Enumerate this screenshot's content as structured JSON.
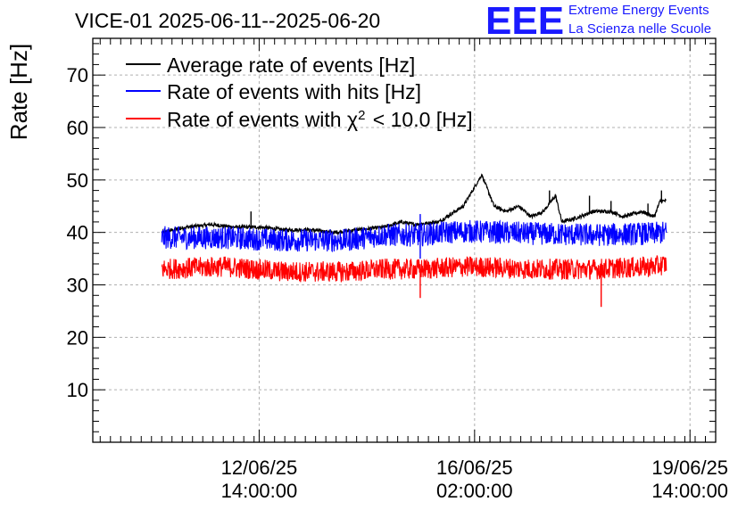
{
  "header": {
    "org_line1": "Extreme Energy Events",
    "org_line2": "La Scienza nelle Scuole",
    "logo_text": "EEE",
    "logo_color": "#1a1aff"
  },
  "chart_data": {
    "type": "line",
    "title": "VICE-01 2025-06-11--2025-06-20",
    "ylabel": "Rate [Hz]",
    "xlabel": "",
    "ylim": [
      0,
      77
    ],
    "xlim_days": [
      -1.12,
      9.0
    ],
    "yticks": [
      10,
      20,
      30,
      40,
      50,
      60,
      70
    ],
    "xticks": [
      {
        "day": 1.583,
        "line1": "12/06/25",
        "line2": "14:00:00"
      },
      {
        "day": 5.083,
        "line1": "16/06/25",
        "line2": "02:00:00"
      },
      {
        "day": 8.583,
        "line1": "19/06/25",
        "line2": "14:00:00"
      }
    ],
    "x_start_day": 0,
    "x_end_day": 8.2,
    "grid": true,
    "legend_position": "top-left",
    "series": [
      {
        "name": "Average rate of events [Hz]",
        "label_main": "Average rate of events [Hz]",
        "color": "#000000",
        "noise": 0.35,
        "anchors": [
          [
            0,
            40
          ],
          [
            0.4,
            41
          ],
          [
            0.8,
            41.5
          ],
          [
            1.2,
            41
          ],
          [
            1.6,
            41
          ],
          [
            2,
            40.5
          ],
          [
            2.4,
            40.5
          ],
          [
            2.8,
            40
          ],
          [
            3.2,
            40.5
          ],
          [
            3.6,
            41
          ],
          [
            3.9,
            42
          ],
          [
            4.1,
            41.5
          ],
          [
            4.5,
            42
          ],
          [
            4.9,
            45
          ],
          [
            5.2,
            51
          ],
          [
            5.4,
            45
          ],
          [
            5.6,
            44
          ],
          [
            5.8,
            45
          ],
          [
            6.0,
            43
          ],
          [
            6.2,
            44
          ],
          [
            6.4,
            47
          ],
          [
            6.5,
            42
          ],
          [
            6.8,
            43
          ],
          [
            7.0,
            44
          ],
          [
            7.3,
            44
          ],
          [
            7.5,
            43
          ],
          [
            7.8,
            44
          ],
          [
            8.0,
            43
          ],
          [
            8.1,
            46
          ],
          [
            8.2,
            46
          ]
        ],
        "spikes": [
          [
            1.45,
            44
          ],
          [
            5.5,
            44
          ],
          [
            6.3,
            48
          ],
          [
            6.95,
            47
          ],
          [
            7.3,
            46
          ],
          [
            7.9,
            45.5
          ],
          [
            8.12,
            48
          ]
        ]
      },
      {
        "name": "Rate of events with hits [Hz]",
        "label_main": "Rate of events with hits [Hz]",
        "color": "#0000ff",
        "band": 2.2,
        "anchors": [
          [
            0,
            39
          ],
          [
            1,
            39
          ],
          [
            2,
            38.5
          ],
          [
            3,
            38.5
          ],
          [
            3.6,
            39.5
          ],
          [
            4.2,
            39.5
          ],
          [
            4.6,
            40
          ],
          [
            5,
            40.2
          ],
          [
            6,
            39.8
          ],
          [
            7,
            39.5
          ],
          [
            8,
            39.8
          ],
          [
            8.2,
            40
          ]
        ],
        "spikes": [
          [
            4.2,
            43.5
          ],
          [
            4.2,
            35
          ]
        ]
      },
      {
        "name": "Rate of events with χ2 < 10.0 [Hz]",
        "label_main": "Rate of events with χ",
        "label_sup": "2",
        "label_rest": " < 10.0 [Hz]",
        "color": "#ff0000",
        "band": 2.0,
        "anchors": [
          [
            0,
            33
          ],
          [
            1,
            33.5
          ],
          [
            2,
            32.5
          ],
          [
            3,
            32.5
          ],
          [
            3.6,
            33
          ],
          [
            4.2,
            33
          ],
          [
            5,
            33.5
          ],
          [
            6,
            33
          ],
          [
            7,
            33
          ],
          [
            8,
            33.5
          ],
          [
            8.2,
            34
          ]
        ],
        "spikes": [
          [
            4.2,
            27.5
          ],
          [
            7.14,
            25.8
          ]
        ]
      }
    ]
  }
}
